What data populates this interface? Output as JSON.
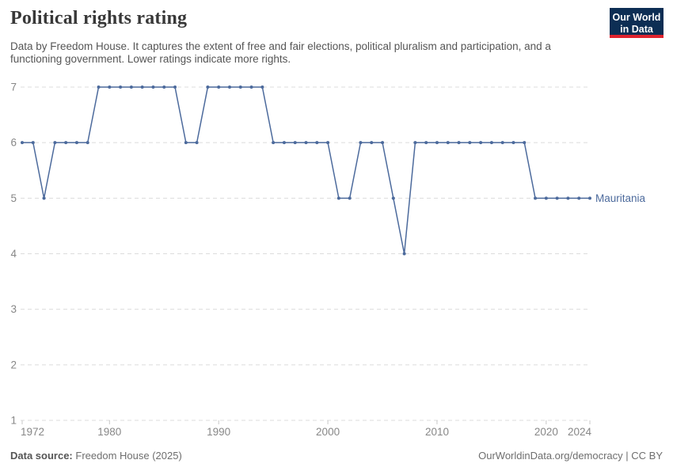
{
  "header": {
    "title": "Political rights rating",
    "subtitle": "Data by Freedom House. It captures the extent of free and fair elections, political pluralism and participation, and a functioning government. Lower ratings indicate more rights."
  },
  "logo": {
    "line1": "Our World",
    "line2": "in Data",
    "bg_color": "#0d2e54",
    "accent_color": "#e0232e"
  },
  "footer": {
    "datasource_label": "Data source:",
    "datasource_value": "Freedom House (2025)",
    "credit": "OurWorldinData.org/democracy | CC BY"
  },
  "chart_data": {
    "type": "line",
    "title": "Political rights rating",
    "entity_label": "Mauritania",
    "line_color": "#4c6a9c",
    "grid_color": "#dcdcdc",
    "tick_color": "#c8c8c8",
    "axis_label_color": "#878787",
    "xlabel": "",
    "ylabel": "",
    "xlim": [
      1972,
      2024
    ],
    "ylim": [
      1,
      7
    ],
    "xticks": [
      1972,
      1980,
      1990,
      2000,
      2010,
      2020,
      2024
    ],
    "yticks": [
      1,
      2,
      3,
      4,
      5,
      6,
      7
    ],
    "grid": "horizontal-dashed",
    "legend_position": "end-of-line-label",
    "x": [
      1972,
      1973,
      1974,
      1975,
      1976,
      1977,
      1978,
      1979,
      1980,
      1981,
      1982,
      1983,
      1984,
      1985,
      1986,
      1987,
      1988,
      1989,
      1990,
      1991,
      1992,
      1993,
      1994,
      1995,
      1996,
      1997,
      1998,
      1999,
      2000,
      2001,
      2002,
      2003,
      2004,
      2005,
      2006,
      2007,
      2008,
      2009,
      2010,
      2011,
      2012,
      2013,
      2014,
      2015,
      2016,
      2017,
      2018,
      2019,
      2020,
      2021,
      2022,
      2023,
      2024
    ],
    "series": [
      {
        "name": "Mauritania",
        "values": [
          6,
          6,
          5,
          6,
          6,
          6,
          6,
          7,
          7,
          7,
          7,
          7,
          7,
          7,
          7,
          6,
          6,
          7,
          7,
          7,
          7,
          7,
          7,
          6,
          6,
          6,
          6,
          6,
          6,
          5,
          5,
          6,
          6,
          6,
          5,
          4,
          6,
          6,
          6,
          6,
          6,
          6,
          6,
          6,
          6,
          6,
          6,
          5,
          5,
          5,
          5,
          5,
          5
        ]
      }
    ]
  }
}
